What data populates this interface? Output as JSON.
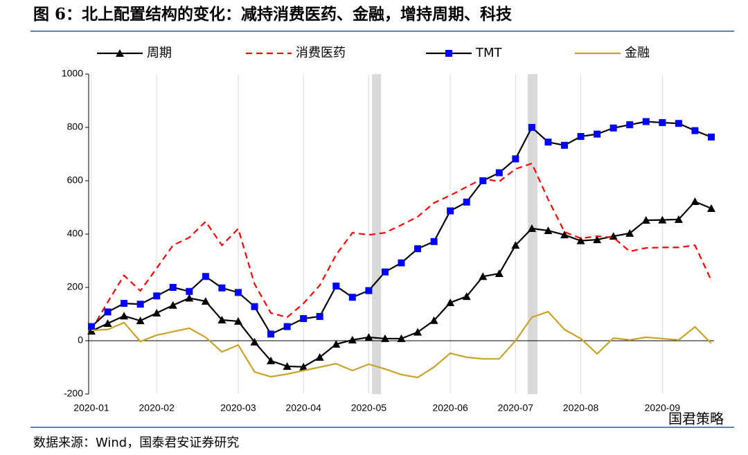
{
  "chart_data": {
    "type": "line",
    "title": "图 6：北上配置结构的变化：减持消费医药、金融，增持周期、科技",
    "source": "数据来源：Wind，国泰君安证券研究",
    "watermark": "国君策略",
    "categories": [
      "2020-01",
      null,
      null,
      null,
      "2020-02",
      null,
      null,
      null,
      null,
      "2020-03",
      null,
      null,
      null,
      "2020-04",
      null,
      null,
      null,
      "2020-05",
      null,
      null,
      null,
      null,
      "2020-06",
      null,
      null,
      null,
      "2020-07",
      null,
      null,
      null,
      "2020-08",
      null,
      null,
      null,
      null,
      "2020-09",
      null,
      null,
      null
    ],
    "series": [
      {
        "name": "周期",
        "color": "#000000",
        "marker": "triangle",
        "dashed": false,
        "values": [
          36,
          65,
          93,
          75,
          104,
          133,
          160,
          148,
          78,
          73,
          -5,
          -75,
          -96,
          -98,
          -62,
          -13,
          3,
          13,
          8,
          8,
          32,
          76,
          143,
          166,
          241,
          252,
          358,
          421,
          413,
          397,
          375,
          379,
          392,
          403,
          452,
          453,
          455,
          522,
          496
        ]
      },
      {
        "name": "消费医药",
        "color": "#ff0000",
        "marker": "none",
        "dashed": true,
        "values": [
          40,
          145,
          245,
          187,
          272,
          358,
          387,
          447,
          358,
          420,
          213,
          104,
          88,
          140,
          208,
          322,
          405,
          397,
          405,
          434,
          465,
          517,
          545,
          577,
          608,
          597,
          644,
          665,
          530,
          408,
          384,
          392,
          387,
          335,
          348,
          350,
          350,
          358,
          226
        ]
      },
      {
        "name": "TMT",
        "color": "#0000ff",
        "marker": "square",
        "dashed": false,
        "values": [
          53,
          108,
          140,
          137,
          168,
          200,
          185,
          241,
          198,
          181,
          128,
          25,
          53,
          83,
          91,
          205,
          163,
          188,
          258,
          292,
          345,
          372,
          487,
          520,
          600,
          630,
          682,
          800,
          745,
          733,
          766,
          775,
          798,
          810,
          822,
          818,
          815,
          788,
          764
        ]
      },
      {
        "name": "金融",
        "color": "#c9a227",
        "marker": "none",
        "dashed": false,
        "values": [
          39,
          42,
          68,
          -3,
          21,
          34,
          47,
          13,
          -42,
          -16,
          -117,
          -135,
          -125,
          -112,
          -99,
          -86,
          -112,
          -88,
          -106,
          -127,
          -138,
          -99,
          -47,
          -62,
          -68,
          -68,
          0,
          88,
          109,
          42,
          8,
          -49,
          10,
          3,
          13,
          8,
          3,
          52,
          -10
        ]
      }
    ],
    "ylim": [
      -200,
      1000
    ],
    "yticks": [
      -200,
      0,
      200,
      400,
      600,
      800,
      1000
    ],
    "grid": "x"
  }
}
